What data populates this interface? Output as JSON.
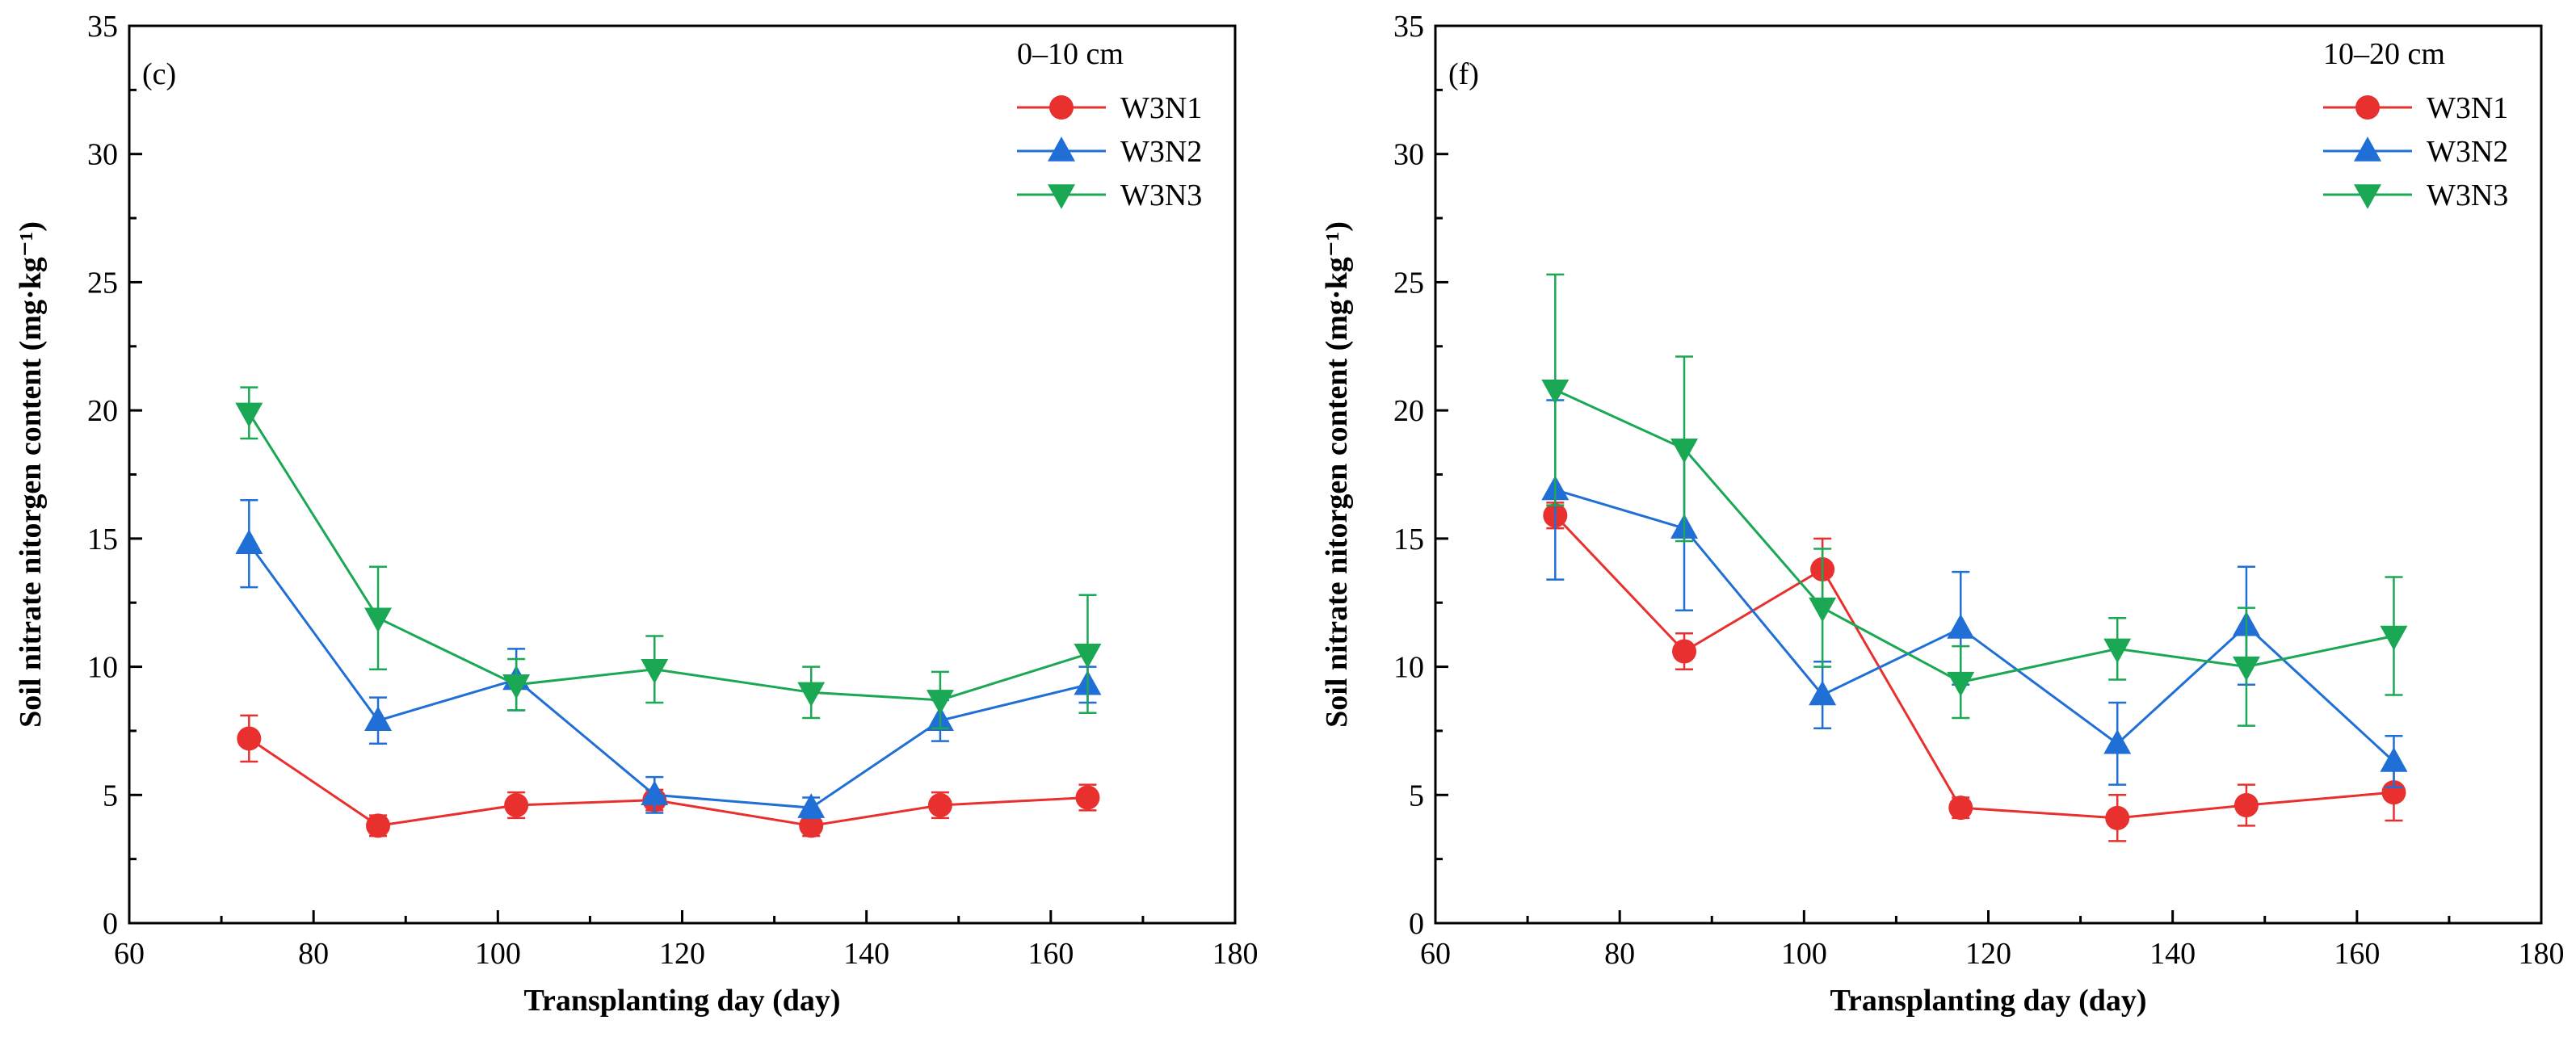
{
  "chart_data": [
    {
      "type": "line",
      "panel_label": "(c)",
      "legend_title": "0–10 cm",
      "xlabel": "Transplanting day (day)",
      "ylabel": "Soil nitrate nitorgen content (mg·kg⁻¹)",
      "xlim": [
        60,
        180
      ],
      "ylim": [
        0,
        35
      ],
      "xticks": [
        60,
        80,
        100,
        120,
        140,
        160,
        180
      ],
      "yticks": [
        0,
        5,
        10,
        15,
        20,
        25,
        30,
        35
      ],
      "x": [
        73,
        87,
        102,
        117,
        134,
        148,
        164
      ],
      "series": [
        {
          "name": "W3N1",
          "color": "#e8302f",
          "marker": "circle",
          "values": [
            7.2,
            3.8,
            4.6,
            4.8,
            3.8,
            4.6,
            4.9
          ],
          "errors": [
            0.9,
            0.4,
            0.5,
            0.4,
            0.4,
            0.5,
            0.5
          ]
        },
        {
          "name": "W3N2",
          "color": "#1f6fd6",
          "marker": "triangle-up",
          "values": [
            14.8,
            7.9,
            9.5,
            5.0,
            4.5,
            7.9,
            9.3
          ],
          "errors": [
            1.7,
            0.9,
            1.2,
            0.7,
            0.4,
            0.8,
            0.7
          ]
        },
        {
          "name": "W3N3",
          "color": "#1aa854",
          "marker": "triangle-down",
          "values": [
            19.9,
            11.9,
            9.3,
            9.9,
            9.0,
            8.7,
            10.5
          ],
          "errors": [
            1.0,
            2.0,
            1.0,
            1.3,
            1.0,
            1.1,
            2.3
          ]
        }
      ]
    },
    {
      "type": "line",
      "panel_label": "(f)",
      "legend_title": "10–20 cm",
      "xlabel": "Transplanting day (day)",
      "ylabel": "Soil nitrate nitorgen content (mg·kg⁻¹)",
      "xlim": [
        60,
        180
      ],
      "ylim": [
        0,
        35
      ],
      "xticks": [
        60,
        80,
        100,
        120,
        140,
        160,
        180
      ],
      "yticks": [
        0,
        5,
        10,
        15,
        20,
        25,
        30,
        35
      ],
      "x": [
        73,
        87,
        102,
        117,
        134,
        148,
        164
      ],
      "series": [
        {
          "name": "W3N1",
          "color": "#e8302f",
          "marker": "circle",
          "values": [
            15.9,
            10.6,
            13.8,
            4.5,
            4.1,
            4.6,
            5.1
          ],
          "errors": [
            0.5,
            0.7,
            1.2,
            0.4,
            0.9,
            0.8,
            1.1
          ]
        },
        {
          "name": "W3N2",
          "color": "#1f6fd6",
          "marker": "triangle-up",
          "values": [
            16.9,
            15.4,
            8.9,
            11.5,
            7.0,
            11.6,
            6.3
          ],
          "errors": [
            3.5,
            3.2,
            1.3,
            2.2,
            1.6,
            2.3,
            1.0
          ]
        },
        {
          "name": "W3N3",
          "color": "#1aa854",
          "marker": "triangle-down",
          "values": [
            20.8,
            18.5,
            12.3,
            9.4,
            10.7,
            10.0,
            11.2
          ],
          "errors": [
            4.5,
            3.6,
            2.3,
            1.4,
            1.2,
            2.3,
            2.3
          ]
        }
      ]
    }
  ]
}
